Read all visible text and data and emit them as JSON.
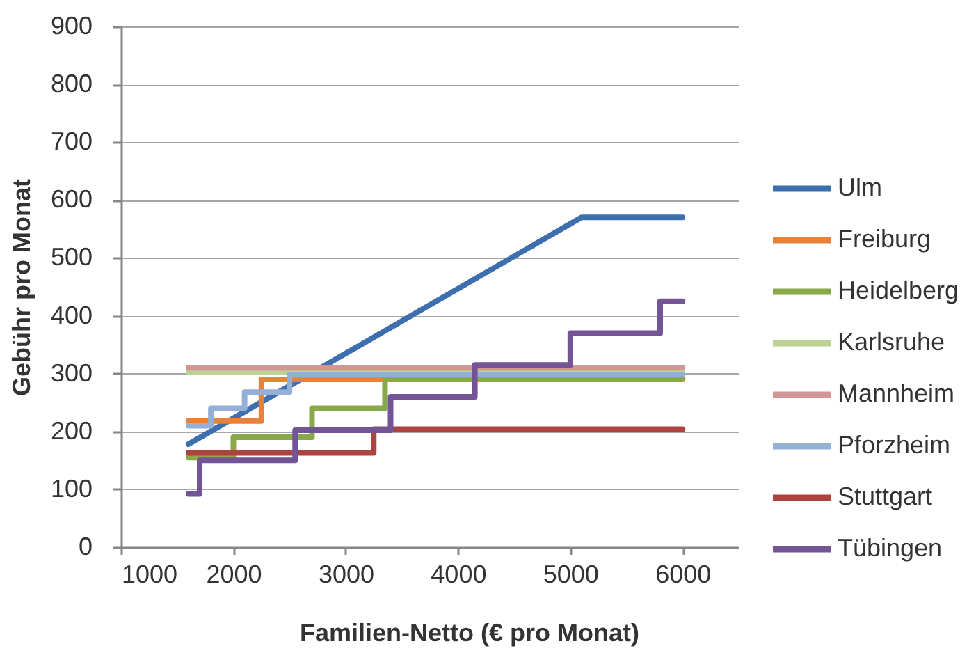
{
  "chart_data": {
    "type": "step",
    "xlabel": "Familien-Netto (€ pro Monat)",
    "ylabel": "Gebühr pro Monat",
    "xlim": [
      1000,
      6500
    ],
    "xticks": [
      1000,
      2000,
      3000,
      4000,
      5000,
      6000
    ],
    "ylim": [
      0,
      900
    ],
    "yticks": [
      0,
      100,
      200,
      300,
      400,
      500,
      600,
      700,
      800,
      900
    ],
    "grid": "y",
    "legend": "right",
    "marker": "none",
    "line_style": "solid",
    "series": [
      {
        "name": "Ulm",
        "type": "line",
        "color": "#3d6fae",
        "x": [
          1600,
          5100,
          6000
        ],
        "values": [
          178,
          570,
          570
        ]
      },
      {
        "name": "Freiburg",
        "color": "#e8823a",
        "x": [
          1600,
          2250,
          6000
        ],
        "values": [
          218,
          290,
          290
        ]
      },
      {
        "name": "Heidelberg",
        "color": "#89a847",
        "x": [
          1600,
          2000,
          2700,
          3350,
          6000
        ],
        "values": [
          155,
          190,
          240,
          292,
          292
        ]
      },
      {
        "name": "Karlsruhe",
        "color": "#bcd194",
        "x": [
          1600,
          6000
        ],
        "values": [
          303,
          303
        ]
      },
      {
        "name": "Mannheim",
        "color": "#d39595",
        "x": [
          1600,
          6000
        ],
        "values": [
          310,
          310
        ]
      },
      {
        "name": "Pforzheim",
        "color": "#94afd8",
        "x": [
          1600,
          1800,
          2100,
          2500,
          6000
        ],
        "values": [
          210,
          240,
          268,
          298,
          298
        ]
      },
      {
        "name": "Stuttgart",
        "color": "#ad433f",
        "x": [
          1600,
          3250,
          6000
        ],
        "values": [
          163,
          204,
          204
        ]
      },
      {
        "name": "Tübingen",
        "color": "#735495",
        "x": [
          1600,
          1700,
          2550,
          3400,
          4150,
          5000,
          5800,
          6000
        ],
        "values": [
          92,
          150,
          202,
          260,
          315,
          370,
          425,
          425
        ]
      }
    ]
  }
}
